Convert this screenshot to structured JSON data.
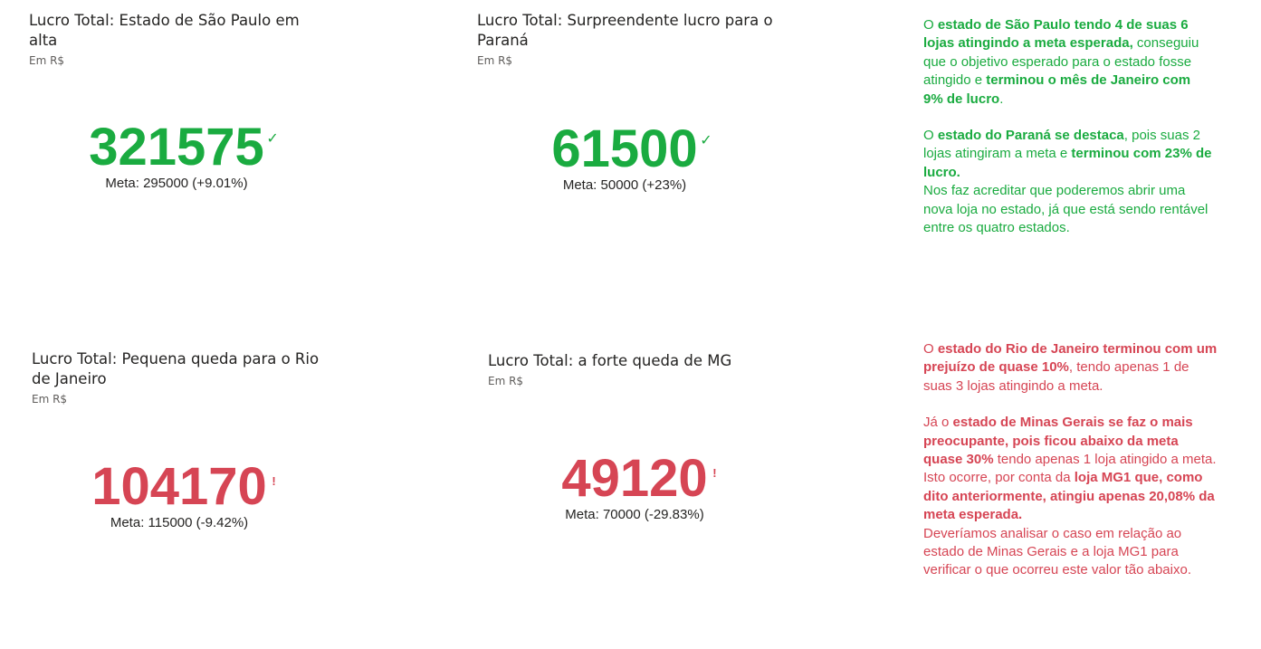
{
  "colors": {
    "good": "#1aab40",
    "bad": "#d64554",
    "text": "#252423",
    "subtext": "#605e5c"
  },
  "cards": [
    {
      "title": "Lucro Total: Estado de São Paulo em alta",
      "subtitle": "Em R$",
      "value": "321575",
      "goal": "Meta: 295000 (+9.01%)",
      "status": "good",
      "status_icon": "checkmark-icon",
      "status_glyph": "✓"
    },
    {
      "title": "Lucro Total: Surpreendente lucro para o Paraná",
      "subtitle": "Em R$",
      "value": "61500",
      "goal": "Meta: 50000 (+23%)",
      "status": "good",
      "status_icon": "checkmark-icon",
      "status_glyph": "✓"
    },
    {
      "title": "Lucro Total: Pequena queda para o Rio de Janeiro",
      "subtitle": "Em R$",
      "value": "104170",
      "goal": "Meta: 115000 (-9.42%)",
      "status": "bad",
      "status_icon": "exclamation-icon",
      "status_glyph": "!"
    },
    {
      "title": "Lucro Total: a forte queda de MG",
      "subtitle": "Em R$",
      "value": "49120",
      "goal": "Meta: 70000 (-29.83%)",
      "status": "bad",
      "status_icon": "exclamation-icon",
      "status_glyph": "!"
    }
  ],
  "notes_top": {
    "p1": [
      {
        "t": "O ",
        "b": false
      },
      {
        "t": "estado de São Paulo tendo 4 de suas 6 lojas atingindo a meta esperada,",
        "b": true
      },
      {
        "t": " conseguiu que o objetivo esperado para o estado fosse atingido e ",
        "b": false
      },
      {
        "t": "terminou o mês de Janeiro com 9% de lucro",
        "b": true
      },
      {
        "t": ".",
        "b": false
      }
    ],
    "p2": [
      {
        "t": "O ",
        "b": false
      },
      {
        "t": "estado do Paraná se destaca",
        "b": true
      },
      {
        "t": ", pois suas 2 lojas atingiram a meta e ",
        "b": false
      },
      {
        "t": "terminou com 23% de lucro.",
        "b": true
      }
    ],
    "p3": [
      {
        "t": "Nos faz acreditar que poderemos abrir uma nova loja no estado, já que está sendo rentável entre os quatro estados.",
        "b": false
      }
    ]
  },
  "notes_bottom": {
    "p1": [
      {
        "t": "O ",
        "b": false
      },
      {
        "t": "estado do Rio de Janeiro terminou com um prejuízo de quase 10%",
        "b": true
      },
      {
        "t": ", tendo apenas 1 de suas 3 lojas atingindo a meta.",
        "b": false
      }
    ],
    "p2": [
      {
        "t": "Já o ",
        "b": false
      },
      {
        "t": "estado de Minas Gerais se faz o mais preocupante, pois ficou abaixo da meta quase 30%",
        "b": true
      },
      {
        "t": " tendo apenas 1 loja atingido a meta. Isto ocorre, por conta da ",
        "b": false
      },
      {
        "t": "loja MG1 que, como dito anteriormente, atingiu apenas 20,08% da meta esperada.",
        "b": true
      }
    ],
    "p3": [
      {
        "t": "Deveríamos analisar o caso em relação ao estado de Minas Gerais e a loja MG1 para verificar o que ocorreu este valor tão abaixo.",
        "b": false
      }
    ]
  }
}
